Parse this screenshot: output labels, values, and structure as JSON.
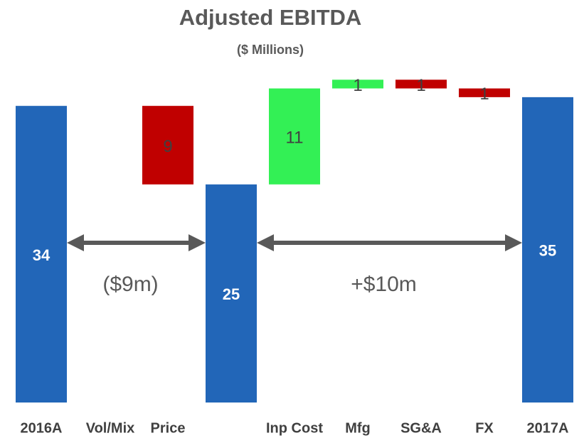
{
  "chart_data": {
    "type": "waterfall",
    "title": "Adjusted EBITDA",
    "subtitle": "($ Millions)",
    "categories": [
      "2016A",
      "Vol/Mix",
      "Price",
      null,
      "Inp Cost",
      "Mfg",
      "SG&A",
      "FX",
      "2017A"
    ],
    "values": [
      34,
      null,
      -9,
      25,
      11,
      1,
      -1,
      -1,
      35
    ],
    "value_labels": [
      "34",
      null,
      "9",
      "25",
      "11",
      "1",
      "1",
      "1",
      "35"
    ],
    "measure": [
      "total",
      "relative",
      "relative",
      "total",
      "relative",
      "relative",
      "relative",
      "relative",
      "total"
    ],
    "colors": {
      "total": "#2266b8",
      "increase": "#33f055",
      "decrease": "#c00000"
    },
    "ylim": [
      0,
      38
    ],
    "annotations": [
      "($9m)",
      "+$10m"
    ]
  }
}
